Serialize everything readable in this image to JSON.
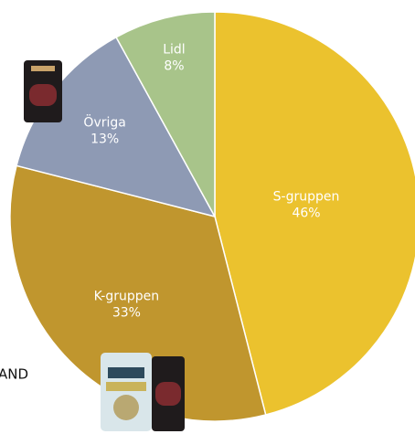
{
  "chart_data": {
    "type": "pie",
    "categories": [
      "S-gruppen",
      "K-gruppen",
      "Övriga",
      "Lidl"
    ],
    "values": [
      46,
      33,
      13,
      8
    ],
    "value_labels": [
      "46%",
      "33%",
      "13%",
      "8%"
    ],
    "colors": [
      "#ebc22e",
      "#c0962e",
      "#8e9ab4",
      "#a8c48a"
    ],
    "partial_text": "AND"
  }
}
